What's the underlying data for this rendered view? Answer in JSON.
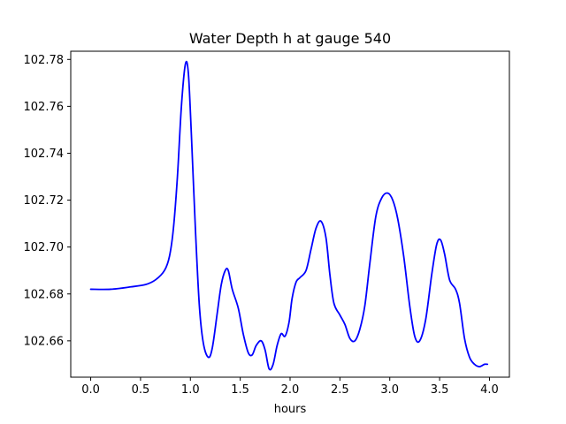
{
  "chart_data": {
    "type": "line",
    "title": "Water Depth h at gauge 540",
    "xlabel": "hours",
    "ylabel": "",
    "xlim": [
      -0.2,
      4.2
    ],
    "ylim": [
      102.6445,
      102.7835
    ],
    "xticks": [
      0.0,
      0.5,
      1.0,
      1.5,
      2.0,
      2.5,
      3.0,
      3.5,
      4.0
    ],
    "xtick_labels": [
      "0.0",
      "0.5",
      "1.0",
      "1.5",
      "2.0",
      "2.5",
      "3.0",
      "3.5",
      "4.0"
    ],
    "yticks": [
      102.66,
      102.68,
      102.7,
      102.72,
      102.74,
      102.76,
      102.78
    ],
    "ytick_labels": [
      "102.66",
      "102.68",
      "102.70",
      "102.72",
      "102.74",
      "102.76",
      "102.78"
    ],
    "grid": false,
    "legend": "none",
    "series": [
      {
        "color": "#0000ff",
        "points": [
          [
            0.0,
            102.682
          ],
          [
            0.2,
            102.682
          ],
          [
            0.4,
            102.683
          ],
          [
            0.55,
            102.684
          ],
          [
            0.65,
            102.686
          ],
          [
            0.74,
            102.69
          ],
          [
            0.79,
            102.696
          ],
          [
            0.83,
            102.708
          ],
          [
            0.87,
            102.73
          ],
          [
            0.91,
            102.76
          ],
          [
            0.95,
            102.778
          ],
          [
            0.98,
            102.774
          ],
          [
            1.01,
            102.748
          ],
          [
            1.05,
            102.708
          ],
          [
            1.09,
            102.675
          ],
          [
            1.13,
            102.659
          ],
          [
            1.18,
            102.653
          ],
          [
            1.22,
            102.657
          ],
          [
            1.27,
            102.672
          ],
          [
            1.31,
            102.684
          ],
          [
            1.35,
            102.69
          ],
          [
            1.38,
            102.69
          ],
          [
            1.42,
            102.682
          ],
          [
            1.48,
            102.674
          ],
          [
            1.53,
            102.663
          ],
          [
            1.58,
            102.655
          ],
          [
            1.62,
            102.654
          ],
          [
            1.66,
            102.658
          ],
          [
            1.71,
            102.66
          ],
          [
            1.75,
            102.656
          ],
          [
            1.79,
            102.648
          ],
          [
            1.83,
            102.65
          ],
          [
            1.87,
            102.658
          ],
          [
            1.91,
            102.663
          ],
          [
            1.95,
            102.662
          ],
          [
            1.99,
            102.668
          ],
          [
            2.02,
            102.678
          ],
          [
            2.06,
            102.685
          ],
          [
            2.1,
            102.687
          ],
          [
            2.16,
            102.69
          ],
          [
            2.21,
            102.699
          ],
          [
            2.26,
            102.708
          ],
          [
            2.31,
            102.711
          ],
          [
            2.36,
            102.704
          ],
          [
            2.4,
            102.688
          ],
          [
            2.44,
            102.676
          ],
          [
            2.5,
            102.671
          ],
          [
            2.55,
            102.667
          ],
          [
            2.6,
            102.661
          ],
          [
            2.65,
            102.66
          ],
          [
            2.7,
            102.665
          ],
          [
            2.75,
            102.675
          ],
          [
            2.8,
            102.693
          ],
          [
            2.86,
            102.713
          ],
          [
            2.92,
            102.721
          ],
          [
            2.98,
            102.723
          ],
          [
            3.03,
            102.72
          ],
          [
            3.08,
            102.712
          ],
          [
            3.14,
            102.696
          ],
          [
            3.2,
            102.675
          ],
          [
            3.25,
            102.662
          ],
          [
            3.3,
            102.66
          ],
          [
            3.36,
            102.669
          ],
          [
            3.42,
            102.688
          ],
          [
            3.47,
            102.701
          ],
          [
            3.51,
            102.703
          ],
          [
            3.55,
            102.697
          ],
          [
            3.6,
            102.686
          ],
          [
            3.66,
            102.682
          ],
          [
            3.7,
            102.676
          ],
          [
            3.75,
            102.661
          ],
          [
            3.8,
            102.653
          ],
          [
            3.85,
            102.65
          ],
          [
            3.9,
            102.649
          ],
          [
            3.95,
            102.65
          ],
          [
            3.98,
            102.65
          ]
        ]
      }
    ]
  }
}
